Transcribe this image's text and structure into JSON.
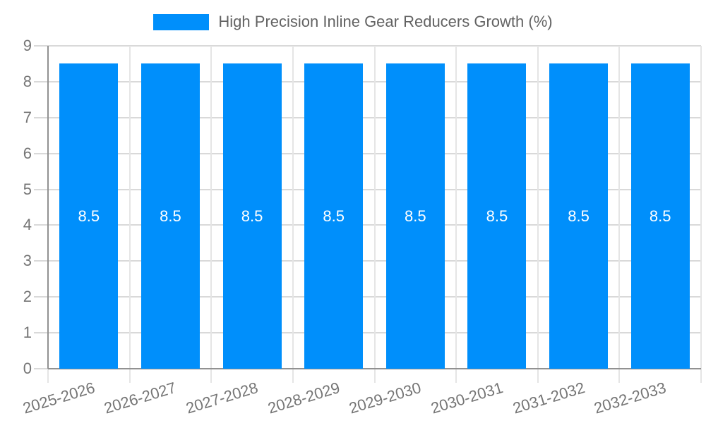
{
  "chart_data": {
    "type": "bar",
    "title": "High Precision Inline Gear Reducers Growth (%)",
    "categories": [
      "2025-2026",
      "2026-2027",
      "2027-2028",
      "2028-2029",
      "2029-2030",
      "2030-2031",
      "2031-2032",
      "2032-2033"
    ],
    "series": [
      {
        "name": "High Precision Inline Gear Reducers Growth (%)",
        "color": "#008FFB",
        "values": [
          8.5,
          8.5,
          8.5,
          8.5,
          8.5,
          8.5,
          8.5,
          8.5
        ]
      }
    ],
    "xlabel": "",
    "ylabel": "",
    "ylim": [
      0,
      9
    ],
    "ytick_step": 1,
    "grid": true,
    "legend_position": "top",
    "bar_label_color": "#FFFFFF",
    "axis_label_color": "#757575",
    "legend_text_color": "#636363"
  }
}
